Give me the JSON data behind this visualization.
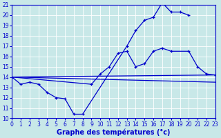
{
  "xlabel": "Graphe des températures (°c)",
  "background_color": "#c8e8e8",
  "line_color": "#0000cc",
  "xlim": [
    0,
    23
  ],
  "ylim": [
    10,
    21
  ],
  "yticks": [
    10,
    11,
    12,
    13,
    14,
    15,
    16,
    17,
    18,
    19,
    20,
    21
  ],
  "xticks": [
    0,
    1,
    2,
    3,
    4,
    5,
    6,
    7,
    8,
    9,
    10,
    11,
    12,
    13,
    14,
    15,
    16,
    17,
    18,
    19,
    20,
    21,
    22,
    23
  ],
  "line1_x": [
    0,
    1,
    2,
    3,
    4,
    5,
    6,
    7,
    8,
    13,
    14,
    15,
    16,
    17,
    18,
    19,
    20
  ],
  "line1_y": [
    14.0,
    13.3,
    13.5,
    13.3,
    12.5,
    12.0,
    11.9,
    10.4,
    10.4,
    17.0,
    18.5,
    19.5,
    19.8,
    21.2,
    20.3,
    20.3,
    20.0
  ],
  "line2_x": [
    0,
    9,
    10,
    11,
    12,
    13,
    14,
    15,
    16,
    17,
    18,
    20,
    21,
    22,
    23
  ],
  "line2_y": [
    14.0,
    13.3,
    14.3,
    15.0,
    16.3,
    16.5,
    15.0,
    15.3,
    16.5,
    16.8,
    16.5,
    16.5,
    15.0,
    14.3,
    14.2
  ],
  "line3_x": [
    0,
    23
  ],
  "line3_y": [
    14.0,
    14.2
  ],
  "line4_x": [
    0,
    23
  ],
  "line4_y": [
    14.0,
    13.5
  ]
}
